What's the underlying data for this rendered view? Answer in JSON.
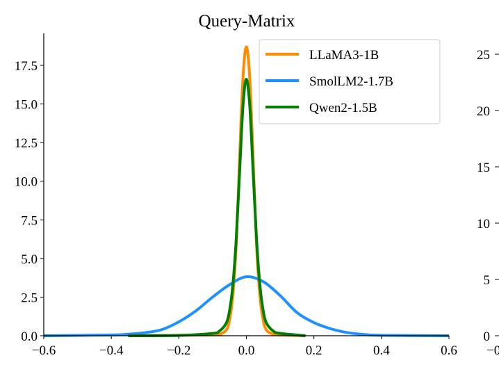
{
  "chart_data": [
    {
      "type": "line",
      "title": "Query-Matrix",
      "xlabel": "",
      "ylabel": "",
      "xlim": [
        -0.6,
        0.6
      ],
      "ylim": [
        0,
        19.2
      ],
      "xticks": [
        "−0.6",
        "−0.4",
        "−0.2",
        "0.0",
        "0.2",
        "0.4",
        "0.6"
      ],
      "xtick_values": [
        -0.6,
        -0.4,
        -0.2,
        0.0,
        0.2,
        0.4,
        0.6
      ],
      "yticks": [
        "0.0",
        "2.5",
        "5.0",
        "7.5",
        "10.0",
        "12.5",
        "15.0",
        "17.5"
      ],
      "ytick_values": [
        0,
        2.5,
        5,
        7.5,
        10,
        12.5,
        15,
        17.5
      ],
      "grid": false,
      "legend_placement": "top-right",
      "series": [
        {
          "name": "LLaMA3-1B",
          "color": "#FF8C00",
          "x": [
            -0.35,
            -0.1,
            -0.08,
            -0.06,
            -0.05,
            -0.04,
            -0.03,
            -0.02,
            -0.01,
            0,
            0.01,
            0.02,
            0.03,
            0.04,
            0.05,
            0.06,
            0.08,
            0.1,
            0.175
          ],
          "y": [
            0,
            0.05,
            0.1,
            0.35,
            1.0,
            2.6,
            5.9,
            11.5,
            16.7,
            18.7,
            16.7,
            11.5,
            5.9,
            2.6,
            1.0,
            0.35,
            0.1,
            0.05,
            0
          ]
        },
        {
          "name": "SmolLM2-1.7B",
          "color": "#1E90FF",
          "x": [
            -0.6,
            -0.4,
            -0.35,
            -0.3,
            -0.25,
            -0.2,
            -0.15,
            -0.1,
            -0.05,
            0,
            0.05,
            0.1,
            0.15,
            0.2,
            0.25,
            0.3,
            0.35,
            0.4,
            0.6
          ],
          "y": [
            0,
            0.05,
            0.1,
            0.2,
            0.4,
            0.9,
            1.6,
            2.5,
            3.3,
            3.82,
            3.5,
            2.6,
            1.5,
            0.85,
            0.45,
            0.2,
            0.08,
            0.03,
            0
          ]
        },
        {
          "name": "Qwen2-1.5B",
          "color": "#008000",
          "x": [
            -0.35,
            -0.2,
            -0.1,
            -0.08,
            -0.06,
            -0.05,
            -0.04,
            -0.03,
            -0.02,
            -0.01,
            0,
            0.01,
            0.02,
            0.03,
            0.04,
            0.05,
            0.06,
            0.08,
            0.1,
            0.175
          ],
          "y": [
            0,
            0.02,
            0.15,
            0.3,
            0.8,
            1.6,
            3.3,
            6.3,
            10.6,
            14.9,
            16.6,
            14.9,
            10.6,
            6.3,
            3.3,
            1.6,
            0.8,
            0.3,
            0.15,
            0
          ]
        }
      ]
    },
    {
      "type": "line",
      "partial": true,
      "yticks": [
        "0",
        "5",
        "10",
        "15",
        "20",
        "25"
      ],
      "ytick_values": [
        0,
        5,
        10,
        15,
        20,
        25
      ],
      "xticks": [
        "−0"
      ]
    }
  ]
}
